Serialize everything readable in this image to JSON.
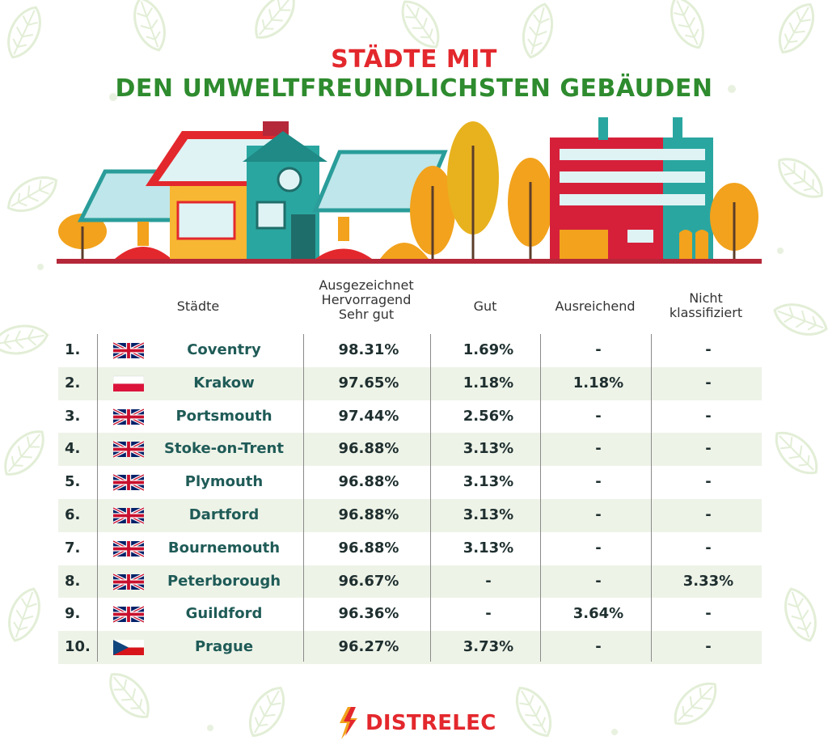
{
  "title": {
    "line1": "STÄDTE MIT",
    "line2": "DEN UMWELTFREUNDLICHSTEN GEBÄUDEN"
  },
  "headers": {
    "cities": "Städte",
    "excellent_line1": "Ausgezeichnet",
    "excellent_line2": "Hervorragend",
    "excellent_line3": "Sehr gut",
    "good": "Gut",
    "sufficient": "Ausreichend",
    "unclassified_line1": "Nicht",
    "unclassified_line2": "klassifiziert"
  },
  "rows": [
    {
      "rank": "1.",
      "flag": "uk-flag-icon",
      "city": "Coventry",
      "excellent": "98.31%",
      "good": "1.69%",
      "sufficient": "-",
      "unclassified": "-"
    },
    {
      "rank": "2.",
      "flag": "poland-flag-icon",
      "city": "Krakow",
      "excellent": "97.65%",
      "good": "1.18%",
      "sufficient": "1.18%",
      "unclassified": "-"
    },
    {
      "rank": "3.",
      "flag": "uk-flag-icon",
      "city": "Portsmouth",
      "excellent": "97.44%",
      "good": "2.56%",
      "sufficient": "-",
      "unclassified": "-"
    },
    {
      "rank": "4.",
      "flag": "uk-flag-icon",
      "city": "Stoke-on-Trent",
      "excellent": "96.88%",
      "good": "3.13%",
      "sufficient": "-",
      "unclassified": "-"
    },
    {
      "rank": "5.",
      "flag": "uk-flag-icon",
      "city": "Plymouth",
      "excellent": "96.88%",
      "good": "3.13%",
      "sufficient": "-",
      "unclassified": "-"
    },
    {
      "rank": "6.",
      "flag": "uk-flag-icon",
      "city": "Dartford",
      "excellent": "96.88%",
      "good": "3.13%",
      "sufficient": "-",
      "unclassified": "-"
    },
    {
      "rank": "7.",
      "flag": "uk-flag-icon",
      "city": "Bournemouth",
      "excellent": "96.88%",
      "good": "3.13%",
      "sufficient": "-",
      "unclassified": "-"
    },
    {
      "rank": "8.",
      "flag": "uk-flag-icon",
      "city": "Peterborough",
      "excellent": "96.67%",
      "good": "-",
      "sufficient": "-",
      "unclassified": "3.33%"
    },
    {
      "rank": "9.",
      "flag": "uk-flag-icon",
      "city": "Guildford",
      "excellent": "96.36%",
      "good": "-",
      "sufficient": "3.64%",
      "unclassified": "-"
    },
    {
      "rank": "10.",
      "flag": "czech-flag-icon",
      "city": "Prague",
      "excellent": "96.27%",
      "good": "3.73%",
      "sufficient": "-",
      "unclassified": "-"
    }
  ],
  "logo": {
    "text": "DISTRELEC",
    "icon": "lightning-bolt-icon"
  },
  "colors": {
    "title_red": "#e3282d",
    "title_green": "#2e8b2e",
    "city_text": "#1f5b57",
    "row_shade": "#eef3e8",
    "leaf_pattern": "#e4efd8"
  }
}
